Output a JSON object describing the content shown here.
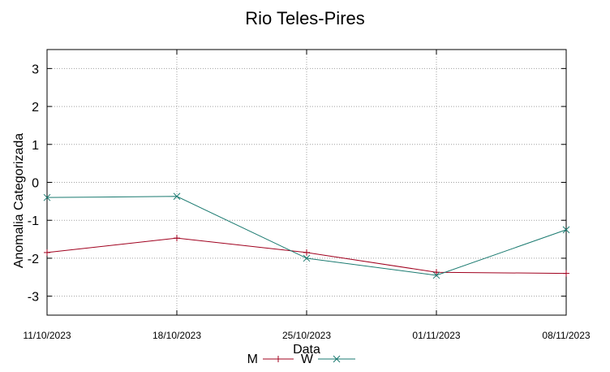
{
  "chart_data": {
    "type": "line",
    "title": "Rio Teles-Pires",
    "xlabel": "Data",
    "ylabel": "Anomalia Categorizada",
    "categories": [
      "11/10/2023",
      "18/10/2023",
      "25/10/2023",
      "01/11/2023",
      "08/11/2023"
    ],
    "yticks": [
      3,
      2,
      1,
      0,
      -1,
      -2,
      -3
    ],
    "ylim": [
      -3.5,
      3.5
    ],
    "grid": true,
    "legend_position": "bottom-center",
    "series": [
      {
        "name": "M",
        "values": [
          -1.85,
          -1.47,
          -1.85,
          -2.37,
          -2.4
        ],
        "color": "#a0001e",
        "marker": "plus"
      },
      {
        "name": "W",
        "values": [
          -0.4,
          -0.37,
          -2.0,
          -2.45,
          -1.25
        ],
        "color": "#1a7a70",
        "marker": "cross"
      }
    ]
  }
}
